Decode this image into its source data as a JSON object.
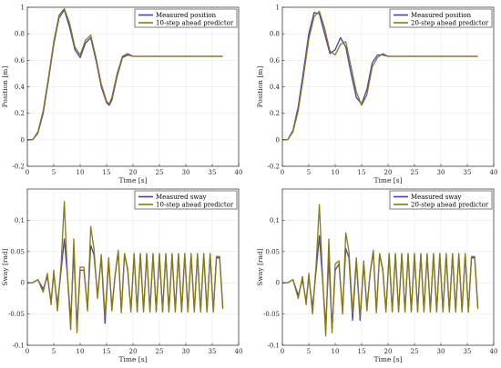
{
  "colors": {
    "measured": "#4a3fb8",
    "predictor": "#8a7a10",
    "grid": "#e6e6e6",
    "axis": "#262626"
  },
  "chart_data": [
    {
      "type": "line",
      "xlabel": "Time [s]",
      "ylabel": "Position [m]",
      "xlim": [
        0,
        40
      ],
      "ylim": [
        -0.2,
        1.0
      ],
      "xticks": [
        0,
        5,
        10,
        15,
        20,
        25,
        30,
        35,
        40
      ],
      "yticks": [
        -0.2,
        0,
        0.2,
        0.4,
        0.6,
        0.8,
        1
      ],
      "grid": true,
      "legend": "top-right",
      "series": [
        {
          "name": "Measured position",
          "color": "#4a3fb8",
          "x": [
            0,
            1,
            2,
            3,
            4,
            5,
            6,
            7,
            8,
            9,
            10,
            11,
            12,
            13,
            14,
            15,
            15.5,
            16,
            17,
            18,
            19,
            20,
            25,
            30,
            35,
            37
          ],
          "y": [
            0,
            0,
            0.05,
            0.2,
            0.45,
            0.72,
            0.92,
            0.98,
            0.85,
            0.68,
            0.62,
            0.73,
            0.77,
            0.6,
            0.4,
            0.28,
            0.26,
            0.3,
            0.48,
            0.62,
            0.64,
            0.63,
            0.63,
            0.63,
            0.63,
            0.63
          ]
        },
        {
          "name": "10-step ahead predictor",
          "color": "#8a7a10",
          "x": [
            0,
            1,
            2,
            3,
            4,
            5,
            6,
            7,
            8,
            9,
            10,
            11,
            12,
            13,
            14,
            15,
            15.5,
            16,
            17,
            18,
            19,
            20,
            25,
            30,
            35,
            37
          ],
          "y": [
            0,
            0,
            0.06,
            0.22,
            0.47,
            0.74,
            0.94,
            0.99,
            0.88,
            0.7,
            0.64,
            0.75,
            0.79,
            0.62,
            0.42,
            0.29,
            0.27,
            0.32,
            0.5,
            0.63,
            0.65,
            0.63,
            0.63,
            0.63,
            0.63,
            0.63
          ]
        }
      ]
    },
    {
      "type": "line",
      "xlabel": "Time [s]",
      "ylabel": "Position [m]",
      "xlim": [
        0,
        40
      ],
      "ylim": [
        -0.2,
        1.0
      ],
      "xticks": [
        0,
        5,
        10,
        15,
        20,
        25,
        30,
        35,
        40
      ],
      "yticks": [
        -0.2,
        0,
        0.2,
        0.4,
        0.6,
        0.8,
        1
      ],
      "grid": true,
      "legend": "top-right",
      "series": [
        {
          "name": "Measured position",
          "color": "#4a3fb8",
          "x": [
            0,
            1,
            2,
            3,
            4,
            5,
            6,
            7,
            8,
            9,
            10,
            11,
            12,
            13,
            14,
            15,
            16,
            17,
            18,
            19,
            20,
            25,
            30,
            35,
            37
          ],
          "y": [
            0,
            0,
            0.07,
            0.25,
            0.52,
            0.8,
            0.96,
            0.95,
            0.8,
            0.65,
            0.68,
            0.77,
            0.7,
            0.5,
            0.32,
            0.27,
            0.38,
            0.58,
            0.64,
            0.64,
            0.63,
            0.63,
            0.63,
            0.63,
            0.63
          ]
        },
        {
          "name": "20-step ahead predictor",
          "color": "#8a7a10",
          "x": [
            0,
            1,
            2,
            3,
            4,
            5,
            6,
            7,
            8,
            9,
            10,
            11,
            12,
            13,
            14,
            15,
            16,
            17,
            18,
            19,
            20,
            25,
            30,
            35,
            37
          ],
          "y": [
            0,
            0,
            0.06,
            0.22,
            0.48,
            0.76,
            0.93,
            0.97,
            0.84,
            0.67,
            0.64,
            0.72,
            0.74,
            0.55,
            0.36,
            0.26,
            0.34,
            0.55,
            0.62,
            0.65,
            0.63,
            0.63,
            0.63,
            0.63,
            0.63
          ]
        }
      ]
    },
    {
      "type": "line",
      "xlabel": "Time [s]",
      "ylabel": "Sway [rad]",
      "xlim": [
        0,
        40
      ],
      "ylim": [
        -0.1,
        0.15
      ],
      "xticks": [
        0,
        5,
        10,
        15,
        20,
        25,
        30,
        35,
        40
      ],
      "yticks": [
        -0.1,
        -0.05,
        0,
        0.05,
        0.1
      ],
      "grid": true,
      "legend": "top-right",
      "series": [
        {
          "name": "Measured sway",
          "color": "#4a3fb8",
          "x": [
            0,
            1,
            2,
            3,
            3.8,
            4.5,
            5,
            5.7,
            6.4,
            7,
            7.6,
            8.2,
            8.8,
            9.4,
            10,
            10.7,
            11.4,
            12,
            12.6,
            13.3,
            14,
            14.7,
            15.4,
            16,
            16.6,
            17.2,
            17.8,
            18.4,
            19,
            19.6,
            20.2,
            20.8,
            21.4,
            22,
            22.6,
            23.2,
            23.8,
            24.4,
            25,
            25.6,
            26.2,
            26.8,
            27.4,
            28,
            28.6,
            29.2,
            29.8,
            30.4,
            31,
            31.6,
            32.2,
            32.8,
            33.4,
            34,
            34.6,
            35.2,
            35.8,
            36.4,
            37
          ],
          "y": [
            0,
            0,
            0.005,
            -0.01,
            0.01,
            -0.03,
            0.015,
            -0.035,
            0.02,
            0.07,
            0.01,
            -0.06,
            0.05,
            -0.07,
            0.02,
            0.02,
            -0.04,
            0.06,
            0.045,
            -0.02,
            0.04,
            -0.065,
            0.035,
            -0.04,
            0.01,
            0.05,
            -0.045,
            0.045,
            0.02,
            -0.045,
            0.045,
            -0.045,
            0.045,
            -0.045,
            0.045,
            -0.045,
            0.045,
            -0.045,
            0.045,
            -0.045,
            0.045,
            -0.045,
            0.045,
            -0.045,
            0.045,
            -0.045,
            0.045,
            -0.045,
            0.045,
            -0.045,
            0.045,
            -0.045,
            0.045,
            -0.045,
            0.045,
            -0.045,
            0.04,
            0.04,
            -0.04
          ]
        },
        {
          "name": "10-step ahead predictor",
          "color": "#8a7a10",
          "x": [
            0,
            1,
            2,
            3,
            3.8,
            4.5,
            5,
            5.7,
            6.4,
            7,
            7.6,
            8.2,
            8.8,
            9.4,
            10,
            10.7,
            11.4,
            12,
            12.6,
            13.3,
            14,
            14.7,
            15.4,
            16,
            16.6,
            17.2,
            17.8,
            18.4,
            19,
            19.6,
            20.2,
            20.8,
            21.4,
            22,
            22.6,
            23.2,
            23.8,
            24.4,
            25,
            25.6,
            26.2,
            26.8,
            27.4,
            28,
            28.6,
            29.2,
            29.8,
            30.4,
            31,
            31.6,
            32.2,
            32.8,
            33.4,
            34,
            34.6,
            35.2,
            35.8,
            36.4,
            37
          ],
          "y": [
            0,
            0,
            0.005,
            -0.015,
            0.015,
            -0.035,
            0.02,
            -0.045,
            0.03,
            0.13,
            0.01,
            -0.075,
            0.07,
            -0.08,
            0.025,
            0.025,
            -0.045,
            0.09,
            0.055,
            -0.025,
            0.045,
            -0.055,
            0.04,
            -0.045,
            0.012,
            0.052,
            -0.048,
            0.047,
            0.022,
            -0.047,
            0.047,
            -0.047,
            0.047,
            -0.047,
            0.047,
            -0.047,
            0.047,
            -0.047,
            0.047,
            -0.047,
            0.047,
            -0.047,
            0.047,
            -0.047,
            0.047,
            -0.047,
            0.047,
            -0.047,
            0.047,
            -0.047,
            0.047,
            -0.047,
            0.047,
            -0.047,
            0.047,
            -0.047,
            0.042,
            0.042,
            -0.042
          ]
        }
      ]
    },
    {
      "type": "line",
      "xlabel": "Time [s]",
      "ylabel": "Sway [rad]",
      "xlim": [
        0,
        40
      ],
      "ylim": [
        -0.1,
        0.15
      ],
      "xticks": [
        0,
        5,
        10,
        15,
        20,
        25,
        30,
        35,
        40
      ],
      "yticks": [
        -0.1,
        -0.05,
        0,
        0.05,
        0.1
      ],
      "grid": true,
      "legend": "top-right",
      "series": [
        {
          "name": "Measured sway",
          "color": "#4a3fb8",
          "x": [
            0,
            1,
            2,
            3,
            3.8,
            4.5,
            5,
            5.7,
            6.4,
            7,
            7.6,
            8.2,
            8.8,
            9.4,
            10,
            10.7,
            11.4,
            12,
            12.6,
            13.3,
            14,
            14.7,
            15.4,
            16,
            16.6,
            17.2,
            17.8,
            18.4,
            19,
            19.6,
            20.2,
            20.8,
            21.4,
            22,
            22.6,
            23.2,
            23.8,
            24.4,
            25,
            25.6,
            26.2,
            26.8,
            27.4,
            28,
            28.6,
            29.2,
            29.8,
            30.4,
            31,
            31.6,
            32.2,
            32.8,
            33.4,
            34,
            34.6,
            35.2,
            35.8,
            36.4,
            37
          ],
          "y": [
            0,
            0,
            0.005,
            -0.02,
            0.005,
            -0.03,
            0.01,
            -0.04,
            0.02,
            0.075,
            0.005,
            -0.07,
            0.04,
            -0.075,
            0.02,
            0.03,
            -0.045,
            0.055,
            0.04,
            -0.06,
            0.035,
            -0.06,
            0.03,
            -0.04,
            0.015,
            0.05,
            -0.045,
            0.045,
            0.02,
            -0.045,
            0.045,
            -0.045,
            0.045,
            -0.045,
            0.045,
            -0.045,
            0.045,
            -0.045,
            0.045,
            -0.045,
            0.045,
            -0.045,
            0.045,
            -0.045,
            0.045,
            -0.045,
            0.045,
            -0.045,
            0.045,
            -0.045,
            0.045,
            -0.045,
            0.045,
            -0.045,
            0.045,
            -0.045,
            0.04,
            0.04,
            -0.04
          ]
        },
        {
          "name": "20-step ahead predictor",
          "color": "#8a7a10",
          "x": [
            0,
            1,
            2,
            3,
            3.8,
            4.5,
            5,
            5.7,
            6.4,
            7,
            7.6,
            8.2,
            8.8,
            9.4,
            10,
            10.7,
            11.4,
            12,
            12.6,
            13.3,
            14,
            14.7,
            15.4,
            16,
            16.6,
            17.2,
            17.8,
            18.4,
            19,
            19.6,
            20.2,
            20.8,
            21.4,
            22,
            22.6,
            23.2,
            23.8,
            24.4,
            25,
            25.6,
            26.2,
            26.8,
            27.4,
            28,
            28.6,
            29.2,
            29.8,
            30.4,
            31,
            31.6,
            32.2,
            32.8,
            33.4,
            34,
            34.6,
            35.2,
            35.8,
            36.4,
            37
          ],
          "y": [
            0,
            0,
            0.005,
            -0.025,
            0.01,
            -0.035,
            0.015,
            -0.05,
            0.03,
            0.125,
            0.01,
            -0.085,
            0.07,
            -0.08,
            0.03,
            0.035,
            -0.05,
            0.08,
            0.05,
            -0.05,
            0.04,
            -0.055,
            0.035,
            -0.045,
            0.015,
            0.052,
            -0.048,
            0.047,
            0.022,
            -0.047,
            0.047,
            -0.047,
            0.047,
            -0.047,
            0.047,
            -0.047,
            0.047,
            -0.047,
            0.047,
            -0.047,
            0.047,
            -0.047,
            0.047,
            -0.047,
            0.047,
            -0.047,
            0.047,
            -0.047,
            0.047,
            -0.047,
            0.047,
            -0.047,
            0.047,
            -0.047,
            0.047,
            -0.047,
            0.042,
            0.042,
            -0.042
          ]
        }
      ]
    }
  ]
}
